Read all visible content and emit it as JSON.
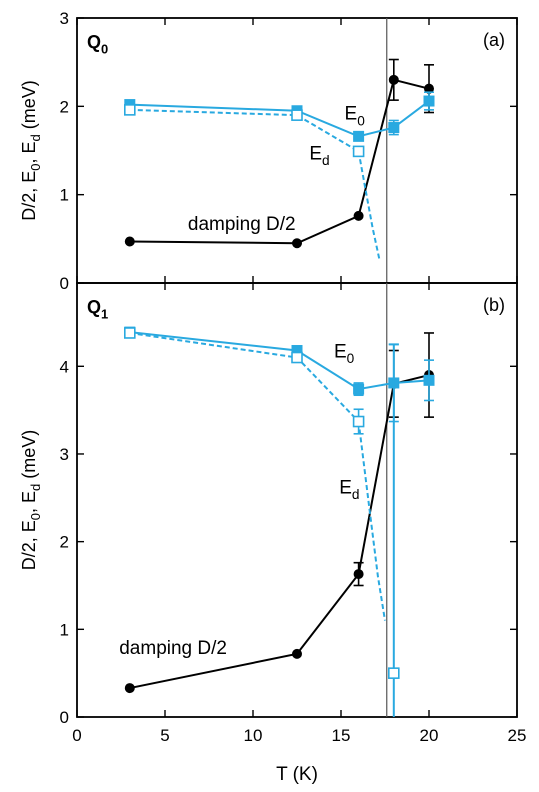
{
  "colors": {
    "black": "#000000",
    "blue": "#29a9e0",
    "frame": "#000000"
  },
  "figure": {
    "xlabel": "T (K)",
    "vline_T": 17.6
  },
  "chart_data": [
    {
      "type": "line",
      "panel_label": "(a)",
      "q_label": {
        "base": "Q",
        "sub": "0"
      },
      "ylabel": {
        "parts": [
          "D/2, E",
          "0",
          ", E",
          "d",
          " (meV)"
        ]
      },
      "xlim": [
        0,
        25
      ],
      "ylim": [
        0,
        3
      ],
      "yticks": [
        0,
        1,
        2,
        3
      ],
      "annotations": [
        {
          "id": "damping",
          "text": "damping D/2",
          "sub": "",
          "x": 6.3,
          "y": 0.6
        },
        {
          "id": "e0",
          "text": "E",
          "sub": "0",
          "x": 15.2,
          "y": 1.85
        },
        {
          "id": "ed",
          "text": "E",
          "sub": "d",
          "x": 13.2,
          "y": 1.4
        }
      ],
      "series": [
        {
          "key": "damping",
          "color": "black",
          "marker": "circle-filled",
          "dash": false,
          "points": [
            [
              3,
              0.47,
              0
            ],
            [
              12.5,
              0.45,
              0
            ],
            [
              16,
              0.76,
              0
            ],
            [
              18,
              2.3,
              0.23
            ],
            [
              20,
              2.2,
              0.27
            ]
          ]
        },
        {
          "key": "E0",
          "color": "blue",
          "marker": "square-filled",
          "dash": false,
          "points": [
            [
              3,
              2.02,
              0
            ],
            [
              12.5,
              1.95,
              0
            ],
            [
              16,
              1.66,
              0
            ],
            [
              18,
              1.76,
              0.08
            ],
            [
              20,
              2.06,
              0.1
            ]
          ]
        },
        {
          "key": "Ed",
          "color": "blue",
          "marker": "square-open",
          "dash": true,
          "points": [
            [
              3,
              1.96,
              0
            ],
            [
              12.5,
              1.9,
              0
            ],
            [
              16,
              1.49,
              0
            ]
          ],
          "tail": [
            [
              16,
              1.49
            ],
            [
              16.4,
              1.05
            ],
            [
              16.8,
              0.62
            ],
            [
              17.2,
              0.25
            ]
          ]
        }
      ]
    },
    {
      "type": "line",
      "panel_label": "(b)",
      "q_label": {
        "base": "Q",
        "sub": "1"
      },
      "ylabel": {
        "parts": [
          "D/2, E",
          "0",
          ", E",
          "d",
          " (meV)"
        ]
      },
      "xlim": [
        0,
        25
      ],
      "ylim": [
        0,
        4.95
      ],
      "yticks": [
        0,
        1,
        2,
        3,
        4
      ],
      "xticks": [
        0,
        5,
        10,
        15,
        20,
        25
      ],
      "annotations": [
        {
          "id": "damping",
          "text": "damping D/2",
          "sub": "",
          "x": 2.4,
          "y": 0.72
        },
        {
          "id": "e0",
          "text": "E",
          "sub": "0",
          "x": 14.6,
          "y": 4.1
        },
        {
          "id": "ed",
          "text": "E",
          "sub": "d",
          "x": 14.9,
          "y": 2.55
        }
      ],
      "series": [
        {
          "key": "damping",
          "color": "black",
          "marker": "circle-filled",
          "dash": false,
          "points": [
            [
              3,
              0.33,
              0
            ],
            [
              12.5,
              0.72,
              0
            ],
            [
              16,
              1.63,
              0.13
            ],
            [
              18,
              3.8,
              0.38
            ],
            [
              20,
              3.9,
              0.48
            ]
          ]
        },
        {
          "key": "E0",
          "color": "blue",
          "marker": "square-filled",
          "dash": false,
          "points": [
            [
              3,
              4.39,
              0
            ],
            [
              12.5,
              4.18,
              0
            ],
            [
              16,
              3.74,
              0.07
            ],
            [
              18,
              3.81,
              0.44
            ],
            [
              20,
              3.84,
              0.23
            ]
          ]
        },
        {
          "key": "Ed",
          "color": "blue",
          "marker": "square-open",
          "dash": true,
          "points": [
            [
              3,
              4.38,
              0
            ],
            [
              12.5,
              4.1,
              0
            ],
            [
              16,
              3.37,
              0.14
            ]
          ],
          "tail": [
            [
              16,
              3.37
            ],
            [
              16.6,
              2.4
            ],
            [
              17.1,
              1.6
            ],
            [
              17.5,
              1.1
            ]
          ]
        },
        {
          "key": "Ed_outlier",
          "color": "blue",
          "marker": "square-open",
          "dash": false,
          "points": [
            [
              18,
              0.5,
              0
            ]
          ],
          "bar_low": -0.2,
          "bar_high": 4.25
        }
      ]
    }
  ]
}
